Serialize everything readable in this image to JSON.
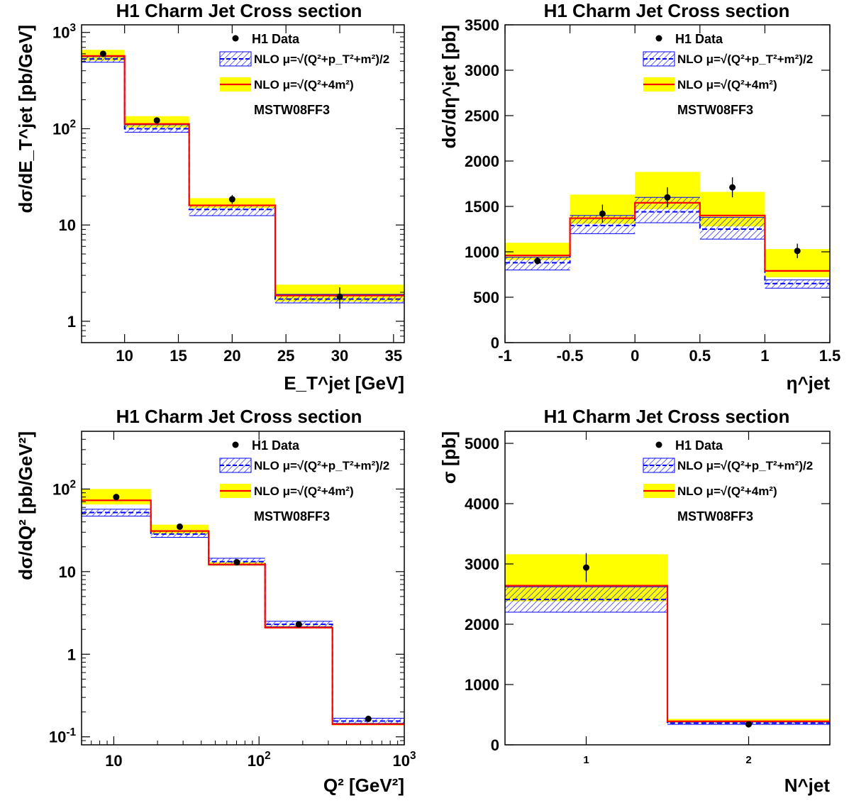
{
  "colors": {
    "data": "#000000",
    "nlo_mu1": "#0000ff",
    "nlo_mu1_hatch": "#0000ff",
    "nlo_mu2": "#ff0000",
    "nlo_mu2_band": "#ffff00"
  },
  "legend": {
    "data": "H1 Data",
    "nlo1": "NLO μ=√(Q²+p_T²+m²)/2",
    "nlo2": "NLO μ=√(Q²+4m²)",
    "pdf": "MSTW08FF3"
  },
  "chart_data": [
    {
      "type": "bar",
      "title": "H1 Charm Jet Cross section",
      "xlabel": "E_T^jet [GeV]",
      "ylabel": "dσ/dE_T^jet [pb/GeV]",
      "xlim": [
        6,
        36
      ],
      "ylim": [
        0.6,
        1200
      ],
      "ylog": true,
      "xticks": [
        10,
        15,
        20,
        25,
        30,
        35
      ],
      "yticks": [
        {
          "v": 1,
          "base": "1",
          "exp": ""
        },
        {
          "v": 10,
          "base": "10",
          "exp": ""
        },
        {
          "v": 100,
          "base": "10",
          "exp": "2"
        },
        {
          "v": 1000,
          "base": "10",
          "exp": "3"
        }
      ],
      "bins": [
        {
          "lo": 6,
          "hi": 10,
          "data": 600,
          "err": 40,
          "nlo1": 530,
          "nlo1_lo": 490,
          "nlo1_hi": 560,
          "nlo2": 570,
          "nlo2_lo": 510,
          "nlo2_hi": 660
        },
        {
          "lo": 10,
          "hi": 16,
          "data": 122,
          "err": 8,
          "nlo1": 100,
          "nlo1_lo": 92,
          "nlo1_hi": 110,
          "nlo2": 112,
          "nlo2_lo": 103,
          "nlo2_hi": 135
        },
        {
          "lo": 16,
          "hi": 24,
          "data": 18.5,
          "err": 2,
          "nlo1": 14.5,
          "nlo1_lo": 12.5,
          "nlo1_hi": 16,
          "nlo2": 16,
          "nlo2_lo": 15,
          "nlo2_hi": 19
        },
        {
          "lo": 24,
          "hi": 36,
          "data": 1.8,
          "err": 0.45,
          "nlo1": 1.7,
          "nlo1_lo": 1.55,
          "nlo1_hi": 1.9,
          "nlo2": 1.85,
          "nlo2_lo": 1.6,
          "nlo2_hi": 2.4
        }
      ]
    },
    {
      "type": "bar",
      "title": "H1 Charm Jet Cross section",
      "xlabel": "η^jet",
      "ylabel": "dσ/dη^jet [pb]",
      "xlim": [
        -1,
        1.5
      ],
      "ylim": [
        0,
        3500
      ],
      "ylog": false,
      "xticks": [
        -1,
        -0.5,
        0,
        0.5,
        1,
        1.5
      ],
      "yticks": [
        {
          "v": 0,
          "base": "0",
          "exp": ""
        },
        {
          "v": 500,
          "base": "500",
          "exp": ""
        },
        {
          "v": 1000,
          "base": "1000",
          "exp": ""
        },
        {
          "v": 1500,
          "base": "1500",
          "exp": ""
        },
        {
          "v": 2000,
          "base": "2000",
          "exp": ""
        },
        {
          "v": 2500,
          "base": "2500",
          "exp": ""
        },
        {
          "v": 3000,
          "base": "3000",
          "exp": ""
        },
        {
          "v": 3500,
          "base": "3500",
          "exp": ""
        }
      ],
      "bins": [
        {
          "lo": -1,
          "hi": -0.5,
          "data": 900,
          "err": 40,
          "nlo1": 880,
          "nlo1_lo": 800,
          "nlo1_hi": 940,
          "nlo2": 960,
          "nlo2_lo": 910,
          "nlo2_hi": 1100
        },
        {
          "lo": -0.5,
          "hi": 0,
          "data": 1420,
          "err": 100,
          "nlo1": 1290,
          "nlo1_lo": 1200,
          "nlo1_hi": 1400,
          "nlo2": 1370,
          "nlo2_lo": 1310,
          "nlo2_hi": 1630
        },
        {
          "lo": 0,
          "hi": 0.5,
          "data": 1600,
          "err": 110,
          "nlo1": 1440,
          "nlo1_lo": 1320,
          "nlo1_hi": 1600,
          "nlo2": 1540,
          "nlo2_lo": 1470,
          "nlo2_hi": 1880
        },
        {
          "lo": 0.5,
          "hi": 1,
          "data": 1710,
          "err": 110,
          "nlo1": 1250,
          "nlo1_lo": 1140,
          "nlo1_hi": 1380,
          "nlo2": 1400,
          "nlo2_lo": 1280,
          "nlo2_hi": 1660
        },
        {
          "lo": 1,
          "hi": 1.5,
          "data": 1010,
          "err": 80,
          "nlo1": 650,
          "nlo1_lo": 600,
          "nlo1_hi": 690,
          "nlo2": 790,
          "nlo2_lo": 720,
          "nlo2_hi": 1030
        }
      ]
    },
    {
      "type": "bar",
      "title": "H1 Charm Jet Cross section",
      "xlabel": "Q² [GeV²]",
      "ylabel": "dσ/dQ² [pb/GeV²]",
      "xlim": [
        6,
        1000
      ],
      "xlog": true,
      "ylim": [
        0.08,
        500
      ],
      "ylog": true,
      "xticks": [
        {
          "v": 10,
          "base": "10",
          "exp": ""
        },
        {
          "v": 100,
          "base": "10",
          "exp": "2"
        },
        {
          "v": 1000,
          "base": "10",
          "exp": "3"
        }
      ],
      "yticks": [
        {
          "v": 0.1,
          "base": "10",
          "exp": "-1"
        },
        {
          "v": 1,
          "base": "1",
          "exp": ""
        },
        {
          "v": 10,
          "base": "10",
          "exp": ""
        },
        {
          "v": 100,
          "base": "10",
          "exp": "2"
        }
      ],
      "bins": [
        {
          "lo": 6,
          "hi": 18,
          "data": 80,
          "err": 4,
          "nlo1": 52,
          "nlo1_lo": 47,
          "nlo1_hi": 57,
          "nlo2": 73,
          "nlo2_lo": 65,
          "nlo2_hi": 100
        },
        {
          "lo": 18,
          "hi": 45,
          "data": 35,
          "err": 2,
          "nlo1": 28.5,
          "nlo1_lo": 26,
          "nlo1_hi": 31,
          "nlo2": 31,
          "nlo2_lo": 29,
          "nlo2_hi": 37
        },
        {
          "lo": 45,
          "hi": 110,
          "data": 13,
          "err": 0.8,
          "nlo1": 13.2,
          "nlo1_lo": 12,
          "nlo1_hi": 14.5,
          "nlo2": 12.2,
          "nlo2_lo": 11.8,
          "nlo2_hi": 13
        },
        {
          "lo": 110,
          "hi": 320,
          "data": 2.3,
          "err": 0.15,
          "nlo1": 2.3,
          "nlo1_lo": 2.15,
          "nlo1_hi": 2.5,
          "nlo2": 2.1,
          "nlo2_lo": 2.05,
          "nlo2_hi": 2.2
        },
        {
          "lo": 320,
          "hi": 1000,
          "data": 0.165,
          "err": 0.012,
          "nlo1": 0.155,
          "nlo1_lo": 0.145,
          "nlo1_hi": 0.168,
          "nlo2": 0.142,
          "nlo2_lo": 0.138,
          "nlo2_hi": 0.148
        }
      ]
    },
    {
      "type": "bar",
      "title": "H1 Charm Jet Cross section",
      "xlabel": "N^jet",
      "ylabel": "σ [pb]",
      "xlim": [
        0.5,
        2.5
      ],
      "ylim": [
        0,
        5200
      ],
      "ylog": false,
      "xticks": [
        1,
        2
      ],
      "yticks": [
        {
          "v": 0,
          "base": "0",
          "exp": ""
        },
        {
          "v": 1000,
          "base": "1000",
          "exp": ""
        },
        {
          "v": 2000,
          "base": "2000",
          "exp": ""
        },
        {
          "v": 3000,
          "base": "3000",
          "exp": ""
        },
        {
          "v": 4000,
          "base": "4000",
          "exp": ""
        },
        {
          "v": 5000,
          "base": "5000",
          "exp": ""
        }
      ],
      "bins": [
        {
          "lo": 0.5,
          "hi": 1.5,
          "data": 2940,
          "err": 240,
          "nlo1": 2410,
          "nlo1_lo": 2200,
          "nlo1_hi": 2620,
          "nlo2": 2640,
          "nlo2_lo": 2380,
          "nlo2_hi": 3160
        },
        {
          "lo": 1.5,
          "hi": 2.5,
          "data": 340,
          "err": 25,
          "nlo1": 360,
          "nlo1_lo": 340,
          "nlo1_hi": 380,
          "nlo2": 390,
          "nlo2_lo": 370,
          "nlo2_hi": 430
        }
      ]
    }
  ]
}
